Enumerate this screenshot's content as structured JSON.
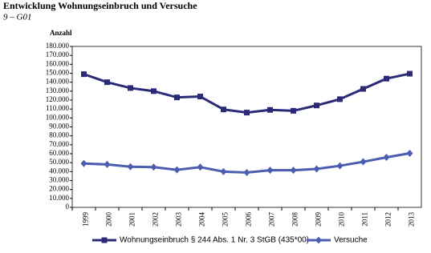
{
  "chart_data": {
    "type": "line",
    "title": "Entwicklung Wohnungseinbruch und Versuche",
    "subtitle": "9 – G01",
    "y_label": "Anzahl",
    "categories": [
      "1999",
      "2000",
      "2001",
      "2002",
      "2003",
      "2004",
      "2005",
      "2006",
      "2007",
      "2008",
      "2009",
      "2010",
      "2011",
      "2012",
      "2013"
    ],
    "series": [
      {
        "name": "Wohnungseinbruch § 244 Abs. 1 Nr. 3 StGB (435*00)",
        "color": "#2b2a78",
        "marker": "square",
        "values": [
          149000,
          140000,
          133500,
          130000,
          123000,
          124000,
          109500,
          106000,
          109000,
          108000,
          114000,
          121000,
          132500,
          144000,
          149500
        ]
      },
      {
        "name": "Versuche",
        "color": "#4a5db0",
        "marker": "diamond",
        "values": [
          49000,
          48000,
          45500,
          45000,
          42000,
          45000,
          40000,
          39000,
          41500,
          41500,
          43000,
          46500,
          51000,
          56000,
          60500
        ]
      }
    ],
    "ylim": [
      0,
      180000
    ],
    "yticks": [
      0,
      {
        "value": 10000,
        "label": "10.000"
      },
      {
        "value": 20000,
        "label": "20.000"
      },
      {
        "value": 30000,
        "label": "30.000"
      },
      {
        "value": 40000,
        "label": "40.000"
      },
      {
        "value": 50000,
        "label": "50.000"
      },
      {
        "value": 60000,
        "label": "60.000"
      },
      {
        "value": 70000,
        "label": "70.000"
      },
      {
        "value": 80000,
        "label": "80.000"
      },
      {
        "value": 90000,
        "label": "90.000"
      },
      {
        "value": 100000,
        "label": "100.000"
      },
      {
        "value": 110000,
        "label": "110.000"
      },
      {
        "value": 120000,
        "label": "120.000"
      },
      {
        "value": 130000,
        "label": "130.000"
      },
      {
        "value": 140000,
        "label": "140.000"
      },
      {
        "value": 150000,
        "label": "150.000"
      },
      {
        "value": 160000,
        "label": "160.000"
      },
      {
        "value": 170000,
        "label": "170.000"
      },
      {
        "value": 180000,
        "label": "180.000"
      }
    ],
    "grid": false
  }
}
